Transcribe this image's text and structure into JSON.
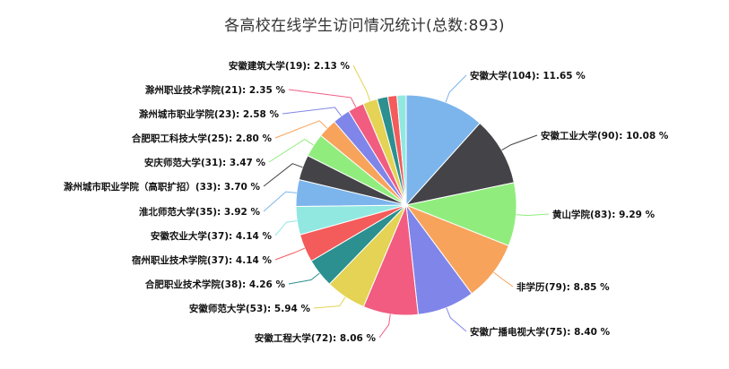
{
  "chart_data": {
    "type": "pie",
    "title": "各高校在线学生访问情况统计(总数:893)",
    "total": 893,
    "slices": [
      {
        "name": "安徽大学",
        "value": 104,
        "percent": "11.65",
        "color": "#7cb5ec",
        "label": "安徽大学(104): 11.65 %"
      },
      {
        "name": "安徽工业大学",
        "value": 90,
        "percent": "10.08",
        "color": "#434348",
        "label": "安徽工业大学(90): 10.08 %"
      },
      {
        "name": "黄山学院",
        "value": 83,
        "percent": "9.29",
        "color": "#90ed7d",
        "label": "黄山学院(83): 9.29 %"
      },
      {
        "name": "非学历",
        "value": 79,
        "percent": "8.85",
        "color": "#f7a35c",
        "label": "非学历(79): 8.85 %"
      },
      {
        "name": "安徽广播电视大学",
        "value": 75,
        "percent": "8.40",
        "color": "#8085e9",
        "label": "安徽广播电视大学(75): 8.40 %"
      },
      {
        "name": "安徽工程大学",
        "value": 72,
        "percent": "8.06",
        "color": "#f15c80",
        "label": "安徽工程大学(72): 8.06 %"
      },
      {
        "name": "安徽师范大学",
        "value": 53,
        "percent": "5.94",
        "color": "#e4d354",
        "label": "安徽师范大学(53): 5.94 %"
      },
      {
        "name": "合肥职业技术学院",
        "value": 38,
        "percent": "4.26",
        "color": "#2b908f",
        "label": "合肥职业技术学院(38): 4.26 %"
      },
      {
        "name": "宿州职业技术学院",
        "value": 37,
        "percent": "4.14",
        "color": "#f45b5b",
        "label": "宿州职业技术学院(37): 4.14 %"
      },
      {
        "name": "安徽农业大学",
        "value": 37,
        "percent": "4.14",
        "color": "#91e8e1",
        "label": "安徽农业大学(37): 4.14 %"
      },
      {
        "name": "淮北师范大学",
        "value": 35,
        "percent": "3.92",
        "color": "#7cb5ec",
        "label": "淮北师范大学(35): 3.92 %"
      },
      {
        "name": "滁州城市职业学院（高职扩招）",
        "value": 33,
        "percent": "3.70",
        "color": "#434348",
        "label": "滁州城市职业学院（高职扩招）(33): 3.70 %"
      },
      {
        "name": "安庆师范大学",
        "value": 31,
        "percent": "3.47",
        "color": "#90ed7d",
        "label": "安庆师范大学(31): 3.47 %"
      },
      {
        "name": "合肥职工科技大学",
        "value": 25,
        "percent": "2.80",
        "color": "#f7a35c",
        "label": "合肥职工科技大学(25): 2.80 %"
      },
      {
        "name": "滁州城市职业学院",
        "value": 23,
        "percent": "2.58",
        "color": "#8085e9",
        "label": "滁州城市职业学院(23): 2.58 %"
      },
      {
        "name": "滁州职业技术学院",
        "value": 21,
        "percent": "2.35",
        "color": "#f15c80",
        "label": "滁州职业技术学院(21): 2.35 %"
      },
      {
        "name": "安徽建筑大学",
        "value": 19,
        "percent": "2.13",
        "color": "#e4d354",
        "label": "安徽建筑大学(19): 2.13 %"
      },
      {
        "name": "",
        "value": 14,
        "percent": "",
        "color": "#2b908f",
        "label": ""
      },
      {
        "name": "",
        "value": 12,
        "percent": "",
        "color": "#f45b5b",
        "label": ""
      },
      {
        "name": "",
        "value": 12,
        "percent": "",
        "color": "#91e8e1",
        "label": ""
      }
    ]
  }
}
